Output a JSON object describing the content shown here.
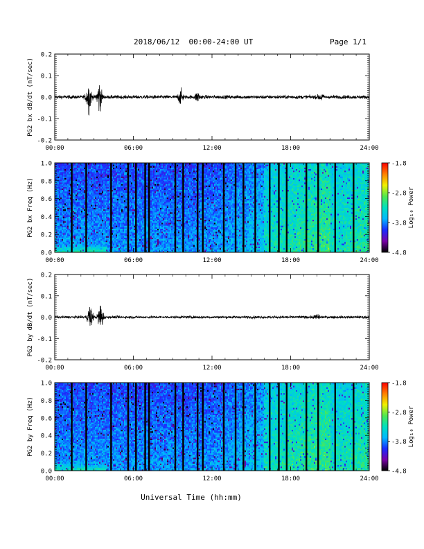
{
  "header": {
    "title": "2018/06/12  00:00-24:00 UT",
    "page": "Page 1/1"
  },
  "xaxis_label": "Universal Time (hh:mm)",
  "colors": {
    "trace": "#000000",
    "frame": "#000000",
    "colorbar": [
      "#000000",
      "#7a00a8",
      "#1a2cff",
      "#00b8ff",
      "#00e0c0",
      "#50e850",
      "#f0f000",
      "#ff8000",
      "#ff0000"
    ]
  },
  "chart_data": [
    {
      "type": "line",
      "ylabel": "PG2 bx dB/dt (nT/sec)",
      "xlim": [
        0,
        24
      ],
      "ylim": [
        -0.2,
        0.2
      ],
      "x_ticks": [
        "00:00",
        "06:00",
        "12:00",
        "18:00",
        "24:00"
      ],
      "y_ticks": [
        "-0.2",
        "-0.1",
        "0.0",
        "0.1",
        "0.2"
      ],
      "baseline_noise": 0.008,
      "bursts": [
        {
          "center_hours": 2.6,
          "amplitude": 0.07
        },
        {
          "center_hours": 3.4,
          "amplitude": 0.07
        },
        {
          "center_hours": 9.6,
          "amplitude": 0.03
        },
        {
          "center_hours": 10.9,
          "amplitude": 0.02
        },
        {
          "center_hours": 20.3,
          "amplitude": 0.015
        }
      ]
    },
    {
      "type": "heatmap",
      "ylabel": "PG2 bx Freq (Hz)",
      "colorbar_label": "Log₁₀ Power",
      "xlim": [
        0,
        24
      ],
      "ylim": [
        0.0,
        1.0
      ],
      "x_ticks": [
        "00:00",
        "06:00",
        "12:00",
        "18:00",
        "24:00"
      ],
      "y_ticks": [
        "0.0",
        "0.2",
        "0.4",
        "0.6",
        "0.8",
        "1.0"
      ],
      "colorbar_range": [
        -4.8,
        -1.8
      ],
      "colorbar_ticks": [
        "-1.8",
        "-2.8",
        "-3.8",
        "-4.8"
      ],
      "data_gaps_hours": [
        1.3,
        2.4,
        4.3,
        5.6,
        6.2,
        6.9,
        7.2,
        9.2,
        9.8,
        10.9,
        11.3,
        12.9,
        13.8,
        14.4,
        15.3,
        16.4,
        17.1,
        17.7,
        19.2,
        20.1,
        21.4,
        22.8
      ]
    },
    {
      "type": "line",
      "ylabel": "PG2 by dB/dt (nT/sec)",
      "xlim": [
        0,
        24
      ],
      "ylim": [
        -0.2,
        0.2
      ],
      "x_ticks": [
        "00:00",
        "06:00",
        "12:00",
        "18:00",
        "24:00"
      ],
      "y_ticks": [
        "-0.2",
        "-0.1",
        "0.0",
        "0.1",
        "0.2"
      ],
      "baseline_noise": 0.006,
      "bursts": [
        {
          "center_hours": 2.7,
          "amplitude": 0.06
        },
        {
          "center_hours": 3.5,
          "amplitude": 0.07
        },
        {
          "center_hours": 20.0,
          "amplitude": 0.012
        }
      ]
    },
    {
      "type": "heatmap",
      "ylabel": "PG2 by Freq (Hz)",
      "colorbar_label": "Log₁₀ Power",
      "xlim": [
        0,
        24
      ],
      "ylim": [
        0.0,
        1.0
      ],
      "x_ticks": [
        "00:00",
        "06:00",
        "12:00",
        "18:00",
        "24:00"
      ],
      "y_ticks": [
        "0.0",
        "0.2",
        "0.4",
        "0.6",
        "0.8",
        "1.0"
      ],
      "colorbar_range": [
        -4.8,
        -1.8
      ],
      "colorbar_ticks": [
        "-1.8",
        "-2.8",
        "-3.8",
        "-4.8"
      ],
      "data_gaps_hours": [
        1.3,
        2.4,
        4.3,
        5.6,
        6.2,
        6.9,
        7.2,
        9.2,
        9.8,
        10.9,
        11.3,
        12.9,
        13.8,
        14.4,
        15.3,
        16.4,
        17.1,
        17.7,
        19.2,
        20.1,
        21.4,
        22.8
      ]
    }
  ]
}
